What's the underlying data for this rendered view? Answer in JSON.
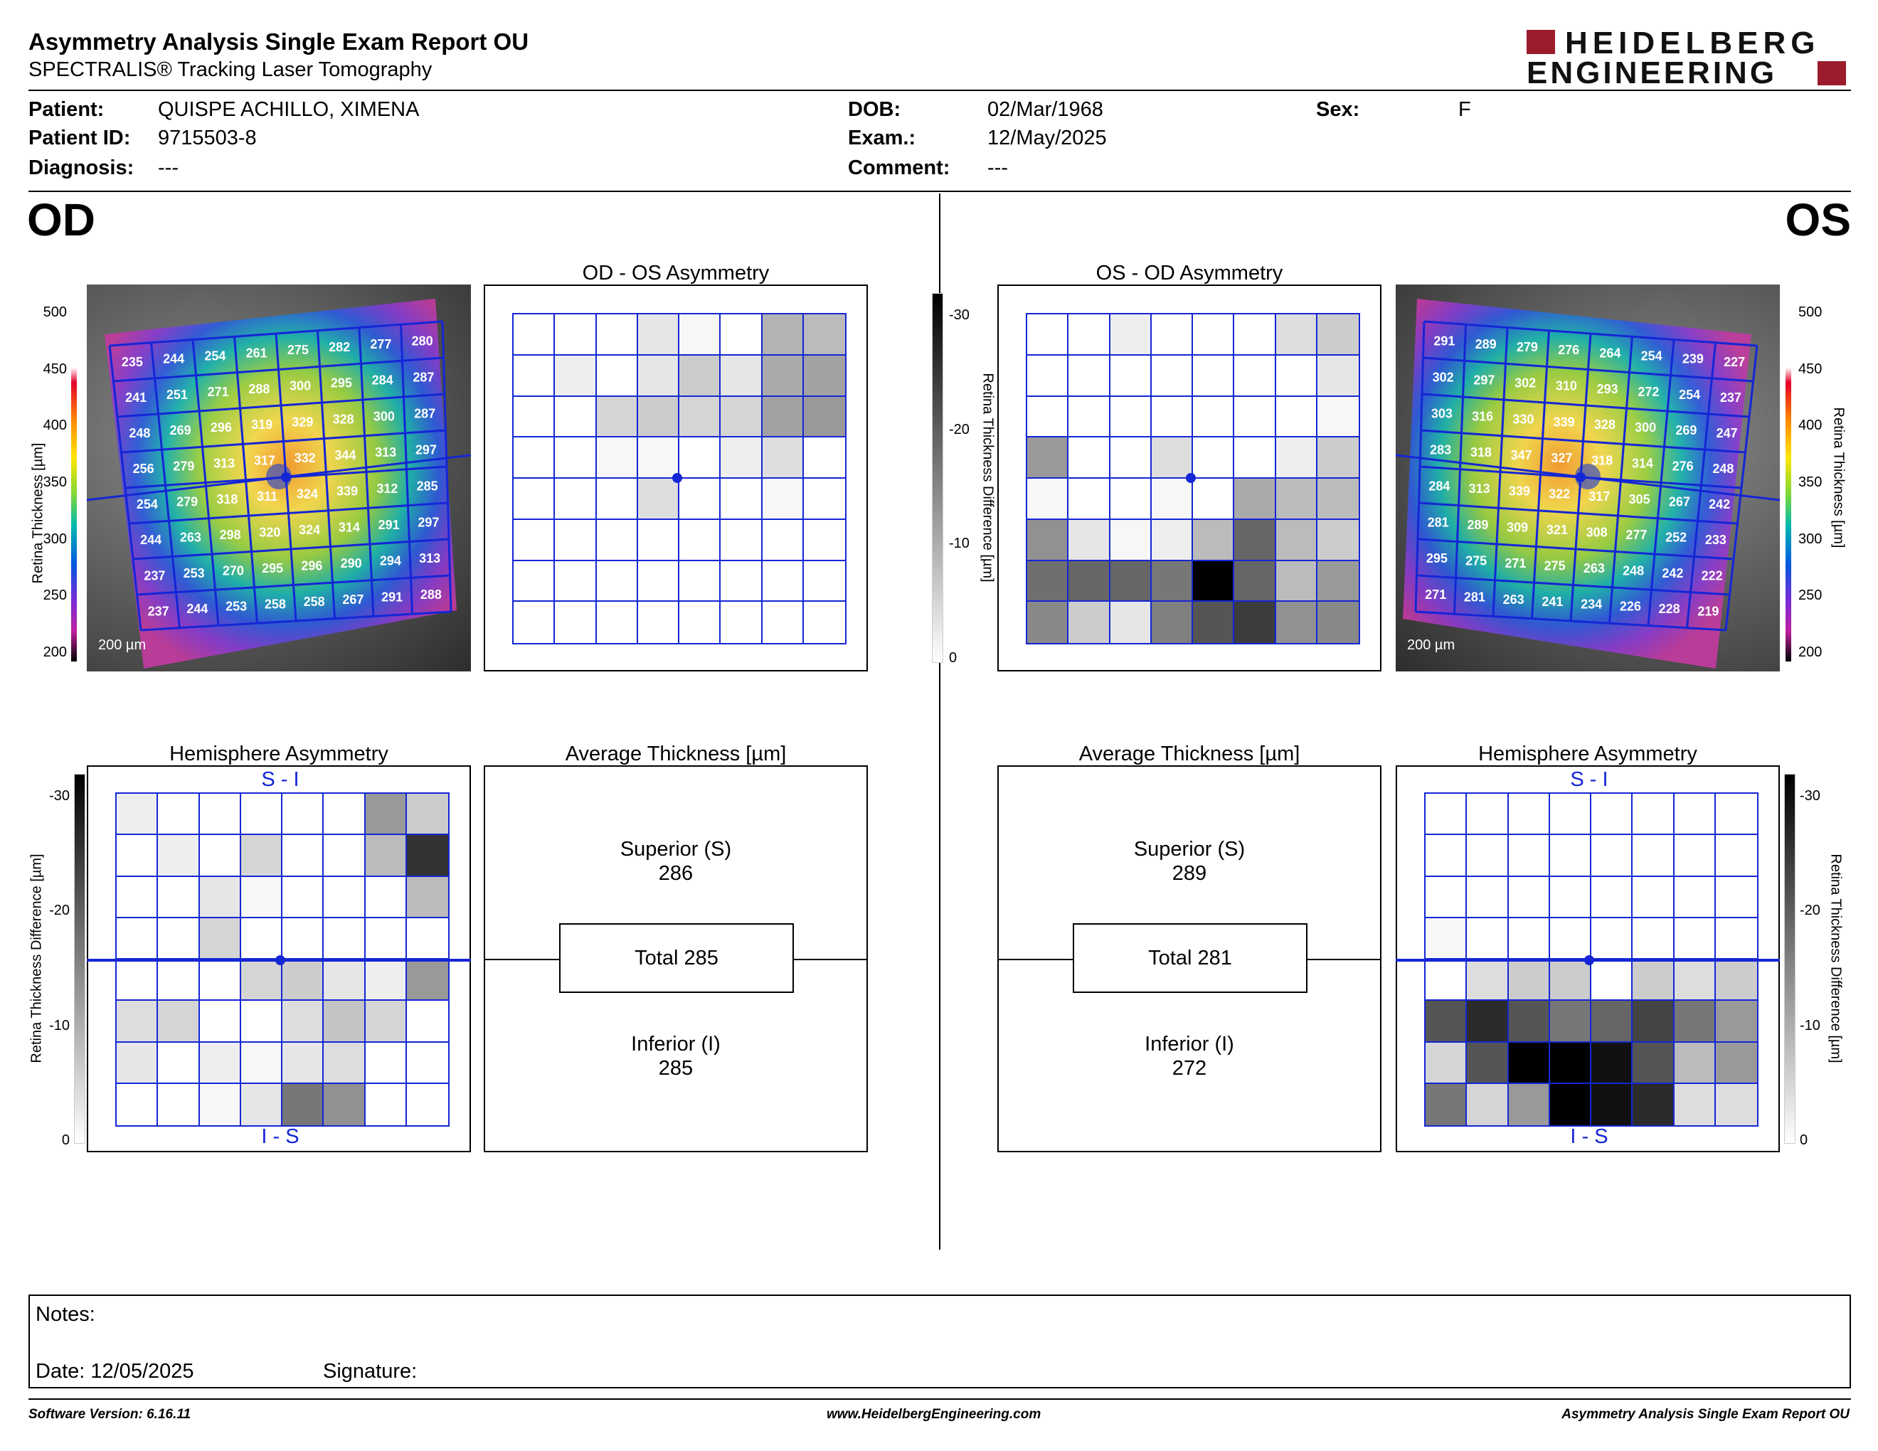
{
  "header": {
    "title": "Asymmetry Analysis Single Exam Report OU",
    "subtitle": "SPECTRALIS® Tracking Laser Tomography",
    "logo_line1": "HEIDELBERG",
    "logo_line2": "ENGINEERING"
  },
  "patient": {
    "patient_label": "Patient:",
    "patient_value": "QUISPE ACHILLO, XIMENA",
    "id_label": "Patient ID:",
    "id_value": "9715503-8",
    "diagnosis_label": "Diagnosis:",
    "diagnosis_value": "---",
    "dob_label": "DOB:",
    "dob_value": "02/Mar/1968",
    "exam_label": "Exam.:",
    "exam_value": "12/May/2025",
    "comment_label": "Comment:",
    "comment_value": "---",
    "sex_label": "Sex:",
    "sex_value": "F"
  },
  "od": {
    "eye_label": "OD",
    "asym_title": "OD - OS Asymmetry",
    "hemi_title": "Hemisphere Asymmetry",
    "avg_title": "Average Thickness [µm]",
    "hemi_top": "S - I",
    "hemi_bottom": "I - S",
    "superior_label": "Superior (S)",
    "superior_value": "286",
    "total_label": "Total 285",
    "inferior_label": "Inferior (I)",
    "inferior_value": "285",
    "scale": "200 µm",
    "thickness_grid": [
      [
        235,
        244,
        254,
        261,
        275,
        282,
        277,
        280
      ],
      [
        241,
        251,
        271,
        288,
        300,
        295,
        284,
        287
      ],
      [
        248,
        269,
        296,
        319,
        329,
        328,
        300,
        287
      ],
      [
        256,
        279,
        313,
        317,
        332,
        344,
        313,
        297
      ],
      [
        254,
        279,
        318,
        311,
        324,
        339,
        312,
        285
      ],
      [
        244,
        263,
        298,
        320,
        324,
        314,
        291,
        297
      ],
      [
        237,
        253,
        270,
        295,
        296,
        290,
        294,
        313
      ],
      [
        237,
        244,
        253,
        258,
        258,
        267,
        291,
        288
      ]
    ],
    "asym_grid": [
      [
        0,
        0,
        0,
        3,
        1,
        0,
        9,
        8
      ],
      [
        0,
        2,
        0,
        3,
        6,
        3,
        10,
        11
      ],
      [
        0,
        0,
        5,
        6,
        5,
        5,
        11,
        12
      ],
      [
        0,
        0,
        1,
        1,
        0,
        2,
        4,
        0
      ],
      [
        0,
        0,
        0,
        4,
        0,
        0,
        1,
        0
      ],
      [
        0,
        0,
        0,
        0,
        0,
        0,
        0,
        0
      ],
      [
        0,
        0,
        0,
        0,
        0,
        0,
        0,
        0
      ],
      [
        0,
        0,
        0,
        0,
        0,
        0,
        0,
        0
      ]
    ],
    "hemi_grid": [
      [
        2,
        0,
        0,
        0,
        0,
        0,
        12,
        6
      ],
      [
        0,
        2,
        0,
        5,
        0,
        0,
        8,
        24
      ],
      [
        0,
        0,
        3,
        1,
        0,
        0,
        0,
        8
      ],
      [
        0,
        0,
        5,
        0,
        0,
        0,
        0,
        0
      ],
      [
        0,
        0,
        0,
        5,
        6,
        3,
        2,
        12
      ],
      [
        4,
        5,
        0,
        0,
        4,
        7,
        5,
        0
      ],
      [
        3,
        0,
        2,
        1,
        3,
        4,
        0,
        0
      ],
      [
        0,
        0,
        1,
        3,
        16,
        13,
        0,
        0
      ]
    ]
  },
  "os": {
    "eye_label": "OS",
    "asym_title": "OS - OD Asymmetry",
    "hemi_title": "Hemisphere Asymmetry",
    "avg_title": "Average Thickness [µm]",
    "hemi_top": "S - I",
    "hemi_bottom": "I - S",
    "superior_label": "Superior (S)",
    "superior_value": "289",
    "total_label": "Total 281",
    "inferior_label": "Inferior (I)",
    "inferior_value": "272",
    "scale": "200 µm",
    "thickness_grid": [
      [
        291,
        289,
        279,
        276,
        264,
        254,
        239,
        227
      ],
      [
        302,
        297,
        302,
        310,
        293,
        272,
        254,
        237
      ],
      [
        303,
        316,
        330,
        339,
        328,
        300,
        269,
        247
      ],
      [
        283,
        318,
        347,
        327,
        318,
        314,
        276,
        248
      ],
      [
        284,
        313,
        339,
        322,
        317,
        305,
        267,
        242
      ],
      [
        281,
        289,
        309,
        321,
        308,
        277,
        252,
        233
      ],
      [
        295,
        275,
        271,
        275,
        263,
        248,
        242,
        222
      ],
      [
        271,
        281,
        263,
        241,
        234,
        226,
        228,
        219
      ]
    ],
    "asym_grid": [
      [
        0,
        0,
        2,
        0,
        0,
        0,
        4,
        6
      ],
      [
        0,
        0,
        0,
        0,
        0,
        0,
        0,
        3
      ],
      [
        0,
        0,
        0,
        0,
        0,
        0,
        0,
        1
      ],
      [
        12,
        0,
        0,
        4,
        0,
        0,
        2,
        6
      ],
      [
        1,
        0,
        0,
        1,
        0,
        10,
        8,
        8
      ],
      [
        13,
        3,
        1,
        2,
        8,
        18,
        8,
        6
      ],
      [
        17,
        18,
        18,
        16,
        30,
        18,
        8,
        12
      ],
      [
        14,
        6,
        3,
        15,
        20,
        23,
        13,
        14
      ]
    ],
    "hemi_grid": [
      [
        0,
        0,
        0,
        0,
        0,
        0,
        0,
        0
      ],
      [
        0,
        0,
        0,
        0,
        0,
        0,
        0,
        0
      ],
      [
        0,
        0,
        0,
        0,
        0,
        0,
        0,
        0
      ],
      [
        1,
        0,
        0,
        0,
        0,
        0,
        0,
        0
      ],
      [
        0,
        4,
        6,
        6,
        0,
        6,
        4,
        6
      ],
      [
        20,
        25,
        20,
        16,
        18,
        22,
        16,
        12
      ],
      [
        5,
        20,
        30,
        30,
        28,
        20,
        8,
        12
      ],
      [
        16,
        5,
        12,
        30,
        28,
        25,
        4,
        4
      ]
    ]
  },
  "thickness_axis": {
    "label": "Retina Thickness [µm]",
    "ticks": [
      "500",
      "450",
      "400",
      "350",
      "300",
      "250",
      "200"
    ]
  },
  "diff_axis": {
    "label": "Retina Thickness Difference [µm]",
    "ticks": [
      "-30",
      "-20",
      "-10",
      "0"
    ]
  },
  "notes": {
    "notes_label": "Notes:",
    "date_label": "Date: 12/05/2025",
    "signature_label": "Signature:"
  },
  "footer": {
    "software": "Software Version: 6.16.11",
    "website": "www.HeidelbergEngineering.com",
    "report": "Asymmetry Analysis Single Exam Report OU"
  },
  "colors": {
    "grid_blue": "#1426d6",
    "logo_red": "#9b1c2c"
  }
}
